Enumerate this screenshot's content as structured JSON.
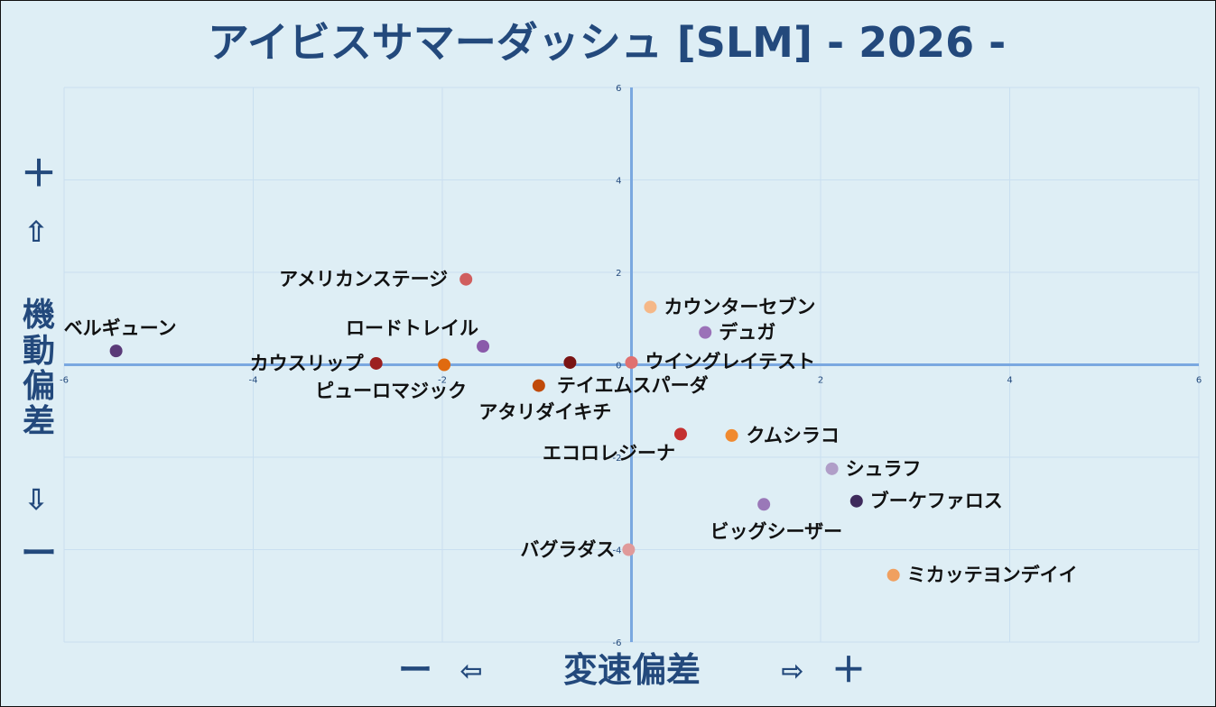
{
  "title": "アイビスサマーダッシュ [SLM]  - 2026 -",
  "y_axis_label": {
    "plus": "＋",
    "up_arrow": "⇧",
    "text_chars": [
      "機",
      "動",
      "偏",
      "差"
    ],
    "down_arrow": "⇩",
    "minus": "ー"
  },
  "x_axis_label": {
    "minus": "ー",
    "left_arrow": "⇦",
    "text": "変速偏差",
    "right_arrow": "⇨",
    "plus": "＋"
  },
  "chart_data": {
    "type": "scatter",
    "title": "アイビスサマーダッシュ [SLM]  - 2026 -",
    "xlabel": "変速偏差",
    "ylabel": "機動偏差",
    "xlim": [
      -6,
      6
    ],
    "ylim": [
      -6,
      6
    ],
    "xticks": [
      -6,
      -4,
      -2,
      0,
      2,
      4,
      6
    ],
    "yticks": [
      -6,
      -4,
      -2,
      0,
      2,
      4,
      6
    ],
    "grid": true,
    "points": [
      {
        "label": "アメリカンステージ",
        "x": -1.75,
        "y": 1.85,
        "color": "#d05e5e"
      },
      {
        "label": "カウンターセブン",
        "x": 0.2,
        "y": 1.25,
        "color": "#f5b888"
      },
      {
        "label": "デュガ",
        "x": 0.78,
        "y": 0.7,
        "color": "#9b72b8"
      },
      {
        "label": "ベルギューン",
        "x": -5.45,
        "y": 0.3,
        "color": "#5a3a78"
      },
      {
        "label": "ロードトレイル",
        "x": -1.57,
        "y": 0.4,
        "color": "#8a5aaa"
      },
      {
        "label": "カウスリップ",
        "x": -2.7,
        "y": 0.03,
        "color": "#9c1f1f"
      },
      {
        "label": "ピューロマジック",
        "x": -1.98,
        "y": 0.0,
        "color": "#e06a10"
      },
      {
        "label": "アタリダイキチ",
        "x": -0.65,
        "y": 0.05,
        "color": "#7a1414"
      },
      {
        "label": "ウイングレイテスト",
        "x": 0.0,
        "y": 0.05,
        "color": "#e07070"
      },
      {
        "label": "テイエムスパーダ",
        "x": -0.98,
        "y": -0.45,
        "color": "#c04a0a"
      },
      {
        "label": "エコロレジーナ",
        "x": 0.52,
        "y": -1.5,
        "color": "#c43030"
      },
      {
        "label": "クムシラコ",
        "x": 1.06,
        "y": -1.53,
        "color": "#f08a30"
      },
      {
        "label": "シュラフ",
        "x": 2.12,
        "y": -2.25,
        "color": "#b09ec8"
      },
      {
        "label": "ブーケファロス",
        "x": 2.38,
        "y": -2.95,
        "color": "#3e2a5c"
      },
      {
        "label": "ビッグシーザー",
        "x": 1.4,
        "y": -3.02,
        "color": "#9a78b8"
      },
      {
        "label": "バグラダス",
        "x": -0.03,
        "y": -4.0,
        "color": "#e09a9a"
      },
      {
        "label": "ミカッテヨンデイイ",
        "x": 2.77,
        "y": -4.55,
        "color": "#f0a060"
      }
    ]
  },
  "colors": {
    "background": "#deeef5",
    "axis": "#7aa8e0",
    "grid": "#c9dff0",
    "title": "#23497c"
  }
}
